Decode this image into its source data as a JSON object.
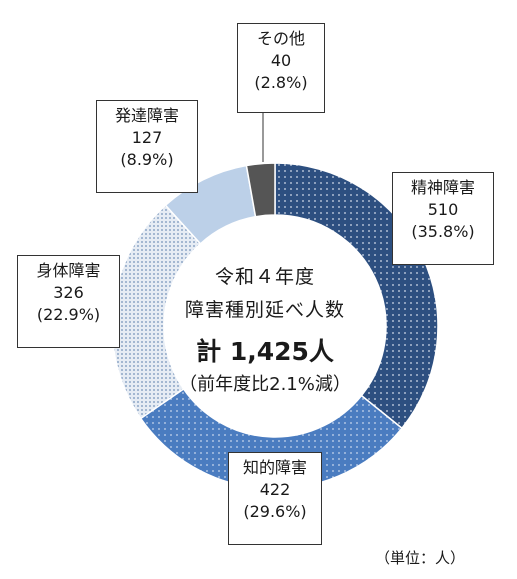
{
  "chart_data": {
    "type": "pie",
    "title_lines": [
      "令和４年度",
      "障害種別延べ人数"
    ],
    "total_text": "計 1,425人",
    "note": "（前年度比2.1%減）",
    "unit": "（単位：人）",
    "slices": [
      {
        "name": "精神障害",
        "value": 510,
        "percent": "(35.8%)",
        "color": "#2d4f80"
      },
      {
        "name": "知的障害",
        "value": 422,
        "percent": "(29.6%)",
        "color": "#4a7cc0"
      },
      {
        "name": "身体障害",
        "value": 326,
        "percent": "(22.9%)",
        "color": "#a3b8d4"
      },
      {
        "name": "発達障害",
        "value": 127,
        "percent": "(8.9%)",
        "color": "#bcd0e8"
      },
      {
        "name": "その他",
        "value": 40,
        "percent": "(2.8%)",
        "color": "#555555"
      }
    ]
  }
}
